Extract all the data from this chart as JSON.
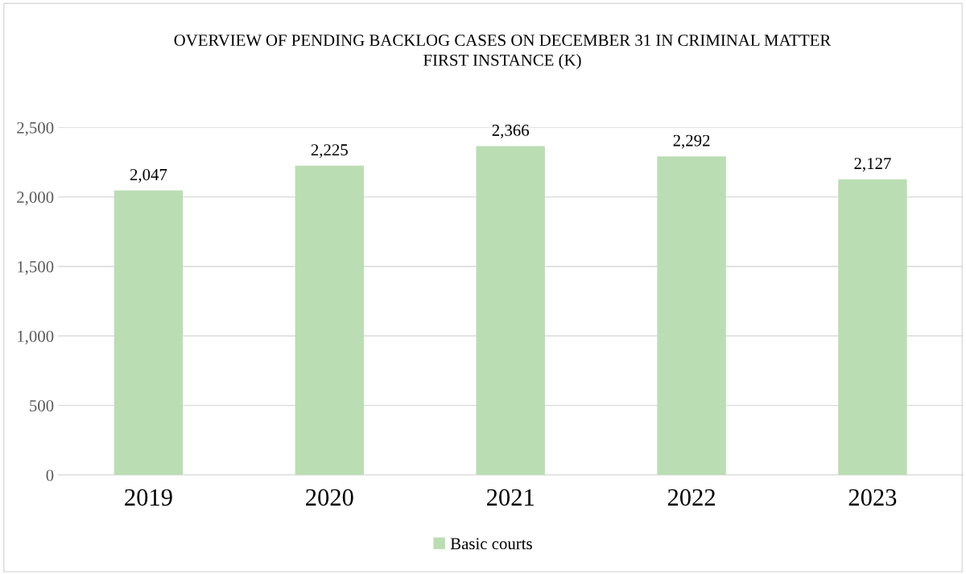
{
  "chart_data": {
    "type": "bar",
    "title": "OVERVIEW OF PENDING BACKLOG CASES ON DECEMBER 31 IN CRIMINAL MATTER\nFIRST INSTANCE (K)",
    "categories": [
      "2019",
      "2020",
      "2021",
      "2022",
      "2023"
    ],
    "series": [
      {
        "name": "Basic courts",
        "color": "#bbddb4",
        "values": [
          2047,
          2225,
          2366,
          2292,
          2127
        ],
        "value_labels": [
          "2,047",
          "2,225",
          "2,366",
          "2,292",
          "2,127"
        ]
      }
    ],
    "ylim": [
      0,
      2500
    ],
    "yticks": [
      {
        "value": 0,
        "label": "0"
      },
      {
        "value": 500,
        "label": "500"
      },
      {
        "value": 1000,
        "label": "1,000"
      },
      {
        "value": 1500,
        "label": "1,500"
      },
      {
        "value": 2000,
        "label": "2,000"
      },
      {
        "value": 2500,
        "label": "2,500"
      }
    ],
    "grid": "y",
    "legend": "bottom"
  }
}
